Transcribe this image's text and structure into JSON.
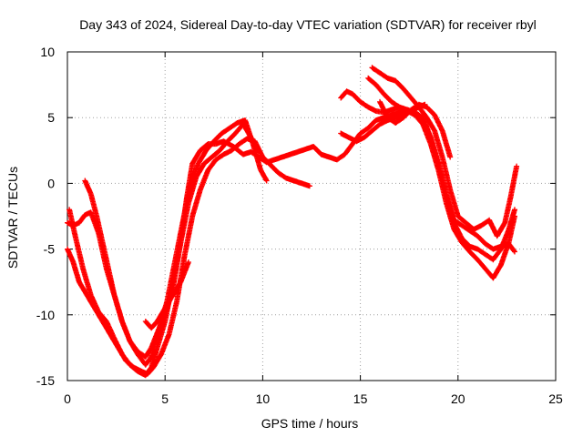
{
  "chart_data": {
    "type": "scatter",
    "title": "Day 343 of 2024, Sidereal Day-to-day VTEC variation (SDTVAR) for receiver rbyl",
    "xlabel": "GPS time / hours",
    "ylabel": "SDTVAR / TECUs",
    "xlim": [
      0,
      25
    ],
    "ylim": [
      -15,
      10
    ],
    "xticks": [
      0,
      5,
      10,
      15,
      20,
      25
    ],
    "yticks": [
      -15,
      -10,
      -5,
      0,
      5,
      10
    ],
    "xtick_labels": [
      "0",
      "5",
      "10",
      "15",
      "20",
      "25"
    ],
    "ytick_labels": [
      "-15",
      "-10",
      "-5",
      "0",
      "5",
      "10"
    ],
    "grid": true,
    "marker": "+",
    "color": "#ff0000",
    "series": [
      {
        "name": "track-1",
        "x": [
          0.0,
          0.3,
          0.6,
          0.9,
          1.2,
          1.6,
          2.0,
          2.4,
          2.8,
          3.2,
          3.6,
          4.0,
          4.3,
          4.6,
          5.0,
          5.4,
          5.8,
          6.1,
          6.4,
          6.8,
          7.2,
          7.6,
          8.0,
          8.5,
          9.0,
          9.4,
          9.8,
          10.2,
          10.6,
          11.0,
          11.4,
          11.8,
          12.2,
          12.6,
          13.0,
          13.4,
          13.8,
          14.2,
          14.6,
          15.0,
          15.4,
          15.8,
          16.2,
          16.6,
          17.0,
          17.4,
          17.8,
          18.2,
          18.6,
          19.0,
          19.4,
          19.8,
          20.2,
          20.6,
          21.0,
          21.4,
          21.8,
          22.2,
          22.6,
          22.9
        ],
        "y": [
          -3.0,
          -3.2,
          -3.0,
          -2.4,
          -2.2,
          -3.8,
          -6.5,
          -8.5,
          -10.5,
          -12.0,
          -13.0,
          -13.8,
          -13.2,
          -11.5,
          -10.0,
          -8.0,
          -4.5,
          -1.2,
          1.5,
          2.5,
          3.0,
          3.0,
          3.2,
          2.8,
          2.2,
          2.4,
          2.0,
          1.6,
          1.8,
          2.0,
          2.2,
          2.4,
          2.6,
          2.8,
          2.2,
          2.0,
          1.8,
          2.2,
          3.0,
          3.8,
          4.2,
          4.8,
          5.0,
          5.2,
          5.4,
          5.6,
          5.4,
          5.0,
          3.5,
          1.5,
          -1.0,
          -2.8,
          -3.2,
          -3.6,
          -4.0,
          -4.6,
          -5.0,
          -4.8,
          -4.6,
          -5.2
        ]
      },
      {
        "name": "track-2",
        "x": [
          0.0,
          0.3,
          0.6,
          1.0,
          1.4,
          1.8,
          2.2,
          2.6,
          3.0,
          3.4,
          3.8,
          4.1,
          4.4,
          4.8,
          5.2,
          5.6,
          6.0,
          6.4,
          6.8,
          7.2,
          7.6,
          8.0,
          8.4,
          8.8,
          9.2,
          9.6,
          10.0,
          10.4,
          10.8,
          11.2,
          11.6,
          12.0,
          12.4
        ],
        "y": [
          -5.0,
          -6.0,
          -7.5,
          -8.5,
          -9.5,
          -10.5,
          -11.5,
          -12.5,
          -13.5,
          -14.0,
          -14.3,
          -14.5,
          -14.0,
          -13.0,
          -11.5,
          -9.0,
          -5.5,
          -2.5,
          -0.5,
          1.0,
          1.8,
          2.2,
          2.5,
          3.0,
          3.4,
          3.2,
          2.0,
          1.4,
          0.8,
          0.4,
          0.2,
          0.0,
          -0.2
        ]
      },
      {
        "name": "track-3",
        "x": [
          0.9,
          1.2,
          1.5,
          1.8,
          2.1,
          2.4,
          2.8,
          3.2,
          3.6,
          4.0,
          4.3,
          4.7,
          5.1,
          5.5,
          5.9,
          6.3,
          6.7,
          7.1,
          7.5,
          7.9,
          8.3,
          8.7,
          9.1,
          9.5,
          9.9,
          10.2
        ],
        "y": [
          0.2,
          -0.8,
          -2.5,
          -4.5,
          -6.5,
          -8.5,
          -10.5,
          -12.0,
          -12.8,
          -13.2,
          -12.5,
          -11.0,
          -9.0,
          -6.0,
          -3.0,
          0.0,
          1.5,
          2.5,
          3.2,
          3.8,
          4.2,
          4.6,
          4.8,
          3.0,
          1.0,
          0.2
        ]
      },
      {
        "name": "track-4",
        "x": [
          0.1,
          0.4,
          0.8,
          1.2,
          1.6,
          2.0,
          2.4,
          2.8,
          3.2,
          3.6,
          4.0,
          4.3,
          4.6,
          5.0,
          5.4,
          5.8,
          6.2,
          6.6,
          7.0,
          7.4,
          7.8,
          8.2,
          8.6,
          9.0,
          9.4,
          9.8
        ],
        "y": [
          -2.0,
          -4.0,
          -6.5,
          -8.5,
          -9.8,
          -10.5,
          -11.8,
          -13.0,
          -13.8,
          -14.3,
          -14.6,
          -14.0,
          -12.5,
          -10.5,
          -7.5,
          -4.5,
          -1.5,
          0.5,
          1.5,
          2.0,
          2.5,
          3.2,
          3.8,
          4.5,
          3.5,
          2.5
        ]
      },
      {
        "name": "track-5",
        "x": [
          4.0,
          4.3,
          4.6,
          5.0,
          5.4,
          5.8,
          6.2
        ],
        "y": [
          -10.5,
          -11.0,
          -10.5,
          -9.5,
          -8.5,
          -7.5,
          -6.0
        ]
      },
      {
        "name": "track-6",
        "x": [
          14.0,
          14.3,
          14.6,
          15.0,
          15.4,
          15.8,
          16.2,
          16.6,
          17.0,
          17.4,
          17.8,
          18.2,
          18.6,
          19.0,
          19.4,
          19.8,
          20.2,
          20.6,
          21.0,
          21.4,
          21.8,
          22.2,
          22.6,
          22.9
        ],
        "y": [
          6.5,
          7.0,
          6.8,
          6.2,
          5.8,
          5.5,
          5.4,
          5.6,
          5.8,
          5.6,
          5.2,
          4.5,
          3.0,
          1.0,
          -1.5,
          -3.5,
          -4.5,
          -5.2,
          -5.8,
          -6.5,
          -7.2,
          -6.2,
          -4.5,
          -2.5
        ]
      },
      {
        "name": "track-7",
        "x": [
          15.4,
          15.8,
          16.2,
          16.6,
          17.0,
          17.4,
          17.8,
          18.2,
          18.6,
          19.0,
          19.4,
          19.8,
          20.2,
          20.6,
          21.0,
          21.4,
          21.8,
          22.2,
          22.6,
          22.9
        ],
        "y": [
          8.0,
          7.5,
          6.8,
          6.2,
          5.8,
          5.5,
          5.2,
          4.8,
          3.5,
          1.5,
          -0.8,
          -3.0,
          -4.2,
          -4.8,
          -5.0,
          -5.4,
          -5.8,
          -5.0,
          -3.5,
          -2.0
        ]
      },
      {
        "name": "track-8",
        "x": [
          15.6,
          16.0,
          16.4,
          16.8,
          17.2,
          17.6,
          18.0,
          18.4,
          18.8,
          19.2,
          19.6,
          20.0,
          20.4,
          20.8,
          21.2,
          21.6,
          22.0,
          22.4,
          22.7,
          23.0
        ],
        "y": [
          8.8,
          8.4,
          8.0,
          7.8,
          7.2,
          6.5,
          5.8,
          5.0,
          4.0,
          2.0,
          -0.5,
          -2.5,
          -3.0,
          -3.5,
          -3.2,
          -2.8,
          -4.0,
          -3.0,
          -1.0,
          1.3
        ]
      },
      {
        "name": "track-9",
        "x": [
          14.0,
          14.4,
          14.8,
          15.2,
          15.6,
          16.0,
          16.4,
          16.8,
          17.2,
          17.6,
          18.0,
          18.3
        ],
        "y": [
          3.8,
          3.5,
          3.2,
          3.5,
          4.0,
          4.5,
          4.8,
          5.0,
          5.2,
          5.5,
          5.8,
          6.0
        ]
      },
      {
        "name": "track-10",
        "x": [
          16.0,
          16.4,
          16.8,
          17.2,
          17.6,
          18.0,
          18.4,
          18.8,
          19.2,
          19.6
        ],
        "y": [
          6.2,
          5.0,
          4.6,
          5.0,
          5.6,
          6.0,
          5.8,
          5.2,
          4.0,
          2.0
        ]
      }
    ]
  }
}
